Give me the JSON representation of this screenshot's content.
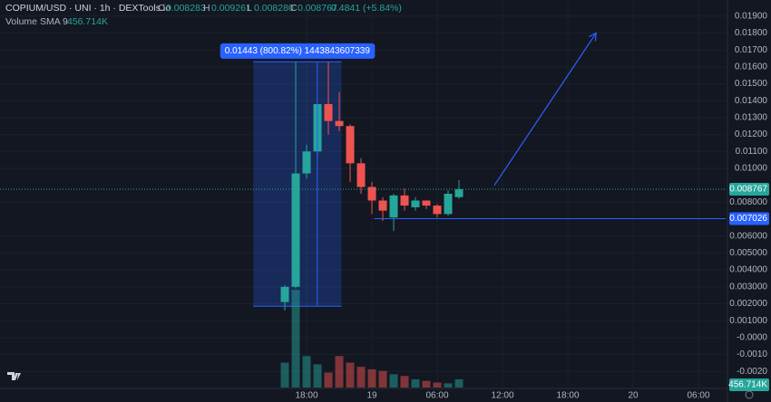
{
  "header": {
    "symbol": "COPIUM/USD · UNI · 1h · DEXTools.io",
    "o_label": "O",
    "o": "0.008283",
    "h_label": "H",
    "h": "0.009261",
    "l_label": "L",
    "l": "0.008280",
    "c_label": "C",
    "c": "0.008767",
    "change": "0.4841 (+5.84%)",
    "volume_label": "Volume SMA 9",
    "volume_value": "456.714K"
  },
  "chart_data": {
    "type": "candlestick",
    "x": [
      -8,
      -7,
      -6,
      -5,
      -4,
      -3,
      -2,
      -1,
      0,
      1,
      2,
      3,
      4,
      5,
      6,
      7,
      8
    ],
    "open": [
      0.0021,
      0.003,
      0.0097,
      0.011,
      0.0138,
      0.0128,
      0.0125,
      0.0103,
      0.0089,
      0.0081,
      0.0071,
      0.0084,
      0.0077,
      0.0081,
      0.0078,
      0.0073,
      0.0083
    ],
    "high": [
      0.0031,
      0.0163,
      0.0114,
      0.0138,
      0.0163,
      0.0145,
      0.0126,
      0.0106,
      0.0092,
      0.0083,
      0.0085,
      0.0088,
      0.0083,
      0.0081,
      0.0079,
      0.0087,
      0.0093
    ],
    "low": [
      0.0016,
      0.0029,
      0.0094,
      0.0106,
      0.012,
      0.0122,
      0.0092,
      0.0085,
      0.0073,
      0.0069,
      0.0063,
      0.0075,
      0.0075,
      0.0076,
      0.0071,
      0.0072,
      0.0082
    ],
    "close": [
      0.003,
      0.0097,
      0.011,
      0.0138,
      0.0128,
      0.0125,
      0.0103,
      0.0089,
      0.0081,
      0.0075,
      0.0084,
      0.0078,
      0.0081,
      0.0078,
      0.0073,
      0.0085,
      0.008767
    ],
    "volume": [
      30,
      118,
      38,
      28,
      18,
      38,
      30,
      25,
      22,
      20,
      16,
      14,
      10,
      8,
      6,
      5,
      10
    ],
    "up_color": "#26a69a",
    "down_color": "#ef5350",
    "xlim": [
      -34.17,
      32.5
    ],
    "ylim": [
      -0.00295,
      0.01995
    ],
    "vlim": [
      0,
      140
    ],
    "xticks": [
      {
        "value": -6,
        "label": "18:00"
      },
      {
        "value": 0,
        "label": "19"
      },
      {
        "value": 6,
        "label": "06:00"
      },
      {
        "value": 12,
        "label": "12:00"
      },
      {
        "value": 18,
        "label": "18:00"
      },
      {
        "value": 24,
        "label": "20"
      },
      {
        "value": 30,
        "label": "06:00"
      }
    ],
    "yticks": [
      {
        "value": 0.019,
        "label": "0.01900"
      },
      {
        "value": 0.018,
        "label": "0.01800"
      },
      {
        "value": 0.017,
        "label": "0.01700"
      },
      {
        "value": 0.016,
        "label": "0.01600"
      },
      {
        "value": 0.015,
        "label": "0.01500"
      },
      {
        "value": 0.014,
        "label": "0.01400"
      },
      {
        "value": 0.013,
        "label": "0.01300"
      },
      {
        "value": 0.012,
        "label": "0.01200"
      },
      {
        "value": 0.011,
        "label": "0.01100"
      },
      {
        "value": 0.01,
        "label": "0.01000"
      },
      {
        "value": 0.008,
        "label": "0.008000"
      },
      {
        "value": 0.006,
        "label": "0.006000"
      },
      {
        "value": 0.005,
        "label": "0.005000"
      },
      {
        "value": 0.004,
        "label": "0.004000"
      },
      {
        "value": 0.003,
        "label": "0.003000"
      },
      {
        "value": 0.002,
        "label": "0.002000"
      },
      {
        "value": 0.001,
        "label": "0.001000"
      },
      {
        "value": 0,
        "label": "-0.0000"
      },
      {
        "value": -0.001,
        "label": "-0.0010"
      },
      {
        "value": -0.002,
        "label": "-0.0020"
      }
    ],
    "grid": true,
    "price_line": {
      "value": 0.008767,
      "color": "#26a69a"
    },
    "horizontal_line": {
      "value": 0.007026,
      "x_start": 0.2,
      "color": "#2962ff"
    },
    "volume_sma": {
      "label": "456.714K",
      "value": 456.714,
      "color": "#26a69a"
    },
    "measure_box": {
      "x": [
        -10.9,
        -2.8
      ],
      "y": [
        0.00185,
        0.0163
      ],
      "label": "0.01443 (800.82%) 1443843607339",
      "color": "#2962ff"
    },
    "trend_arrow": {
      "x": [
        11.25,
        20.6
      ],
      "y": [
        0.009,
        0.018
      ],
      "color": "#2962ff"
    }
  }
}
